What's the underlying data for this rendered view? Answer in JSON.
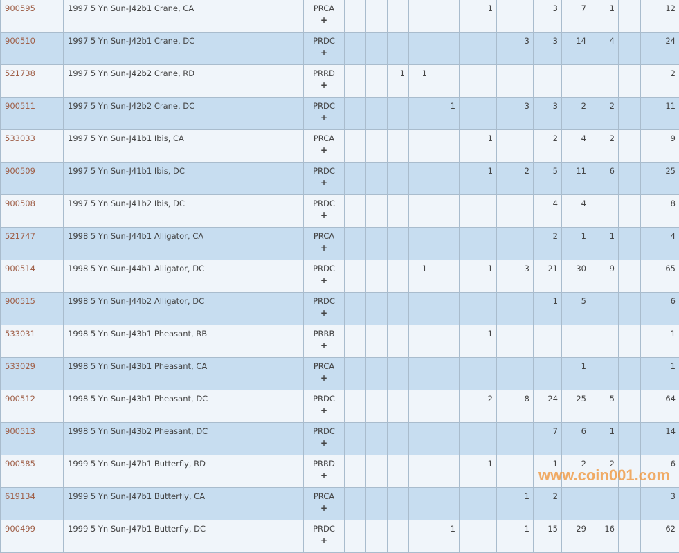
{
  "rows": [
    {
      "id": "900595",
      "desc": "1997 5 Yn Sun-J42b1 Crane, CA",
      "des": "PRCA",
      "plus": "+",
      "vals": [
        "",
        "",
        "",
        "",
        "",
        "1",
        "",
        "3",
        "7",
        "1",
        "",
        "12"
      ]
    },
    {
      "id": "900510",
      "desc": "1997 5 Yn Sun-J42b1 Crane, DC",
      "des": "PRDC",
      "plus": "+",
      "vals": [
        "",
        "",
        "",
        "",
        "",
        "",
        "3",
        "3",
        "14",
        "4",
        "",
        "24"
      ]
    },
    {
      "id": "521738",
      "desc": "1997 5 Yn Sun-J42b2 Crane, RD",
      "des": "PRRD",
      "plus": "+",
      "vals": [
        "",
        "",
        "1",
        "1",
        "",
        "",
        "",
        "",
        "",
        "",
        "",
        "2"
      ]
    },
    {
      "id": "900511",
      "desc": "1997 5 Yn Sun-J42b2 Crane, DC",
      "des": "PRDC",
      "plus": "+",
      "vals": [
        "",
        "",
        "",
        "",
        "1",
        "",
        "3",
        "3",
        "2",
        "2",
        "",
        "11"
      ]
    },
    {
      "id": "533033",
      "desc": "1997 5 Yn Sun-J41b1 Ibis, CA",
      "des": "PRCA",
      "plus": "+",
      "vals": [
        "",
        "",
        "",
        "",
        "",
        "1",
        "",
        "2",
        "4",
        "2",
        "",
        "9"
      ]
    },
    {
      "id": "900509",
      "desc": "1997 5 Yn Sun-J41b1 Ibis, DC",
      "des": "PRDC",
      "plus": "+",
      "vals": [
        "",
        "",
        "",
        "",
        "",
        "1",
        "2",
        "5",
        "11",
        "6",
        "",
        "25"
      ]
    },
    {
      "id": "900508",
      "desc": "1997 5 Yn Sun-J41b2 Ibis, DC",
      "des": "PRDC",
      "plus": "+",
      "vals": [
        "",
        "",
        "",
        "",
        "",
        "",
        "",
        "4",
        "4",
        "",
        "",
        "8"
      ]
    },
    {
      "id": "521747",
      "desc": "1998 5 Yn Sun-J44b1 Alligator, CA",
      "des": "PRCA",
      "plus": "+",
      "vals": [
        "",
        "",
        "",
        "",
        "",
        "",
        "",
        "2",
        "1",
        "1",
        "",
        "4"
      ]
    },
    {
      "id": "900514",
      "desc": "1998 5 Yn Sun-J44b1 Alligator, DC",
      "des": "PRDC",
      "plus": "+",
      "vals": [
        "",
        "",
        "",
        "1",
        "",
        "1",
        "3",
        "21",
        "30",
        "9",
        "",
        "65"
      ]
    },
    {
      "id": "900515",
      "desc": "1998 5 Yn Sun-J44b2 Alligator, DC",
      "des": "PRDC",
      "plus": "+",
      "vals": [
        "",
        "",
        "",
        "",
        "",
        "",
        "",
        "1",
        "5",
        "",
        "",
        "6"
      ]
    },
    {
      "id": "533031",
      "desc": "1998 5 Yn Sun-J43b1 Pheasant, RB",
      "des": "PRRB",
      "plus": "+",
      "vals": [
        "",
        "",
        "",
        "",
        "",
        "1",
        "",
        "",
        "",
        "",
        "",
        "1"
      ]
    },
    {
      "id": "533029",
      "desc": "1998 5 Yn Sun-J43b1 Pheasant, CA",
      "des": "PRCA",
      "plus": "+",
      "vals": [
        "",
        "",
        "",
        "",
        "",
        "",
        "",
        "",
        "1",
        "",
        "",
        "1"
      ]
    },
    {
      "id": "900512",
      "desc": "1998 5 Yn Sun-J43b1 Pheasant, DC",
      "des": "PRDC",
      "plus": "+",
      "vals": [
        "",
        "",
        "",
        "",
        "",
        "2",
        "8",
        "24",
        "25",
        "5",
        "",
        "64"
      ]
    },
    {
      "id": "900513",
      "desc": "1998 5 Yn Sun-J43b2 Pheasant, DC",
      "des": "PRDC",
      "plus": "+",
      "vals": [
        "",
        "",
        "",
        "",
        "",
        "",
        "",
        "7",
        "6",
        "1",
        "",
        "14"
      ]
    },
    {
      "id": "900585",
      "desc": "1999 5 Yn Sun-J47b1 Butterfly, RD",
      "des": "PRRD",
      "plus": "+",
      "vals": [
        "",
        "",
        "",
        "",
        "",
        "1",
        "",
        "1",
        "2",
        "2",
        "",
        "6"
      ]
    },
    {
      "id": "619134",
      "desc": "1999 5 Yn Sun-J47b1 Butterfly, CA",
      "des": "PRCA",
      "plus": "+",
      "vals": [
        "",
        "",
        "",
        "",
        "",
        "",
        "1",
        "2",
        "",
        "",
        "",
        "3"
      ]
    },
    {
      "id": "900499",
      "desc": "1999 5 Yn Sun-J47b1 Butterfly, DC",
      "des": "PRDC",
      "plus": "+",
      "vals": [
        "",
        "",
        "",
        "",
        "1",
        "",
        "1",
        "15",
        "29",
        "16",
        "",
        "62"
      ]
    }
  ],
  "watermark": "www.coin001.com",
  "colors": {
    "id_link": "#a0614a",
    "row_light": "#f0f5fa",
    "row_dark": "#c7ddf0",
    "border": "#a9bccd",
    "watermark": "#f0963c"
  }
}
